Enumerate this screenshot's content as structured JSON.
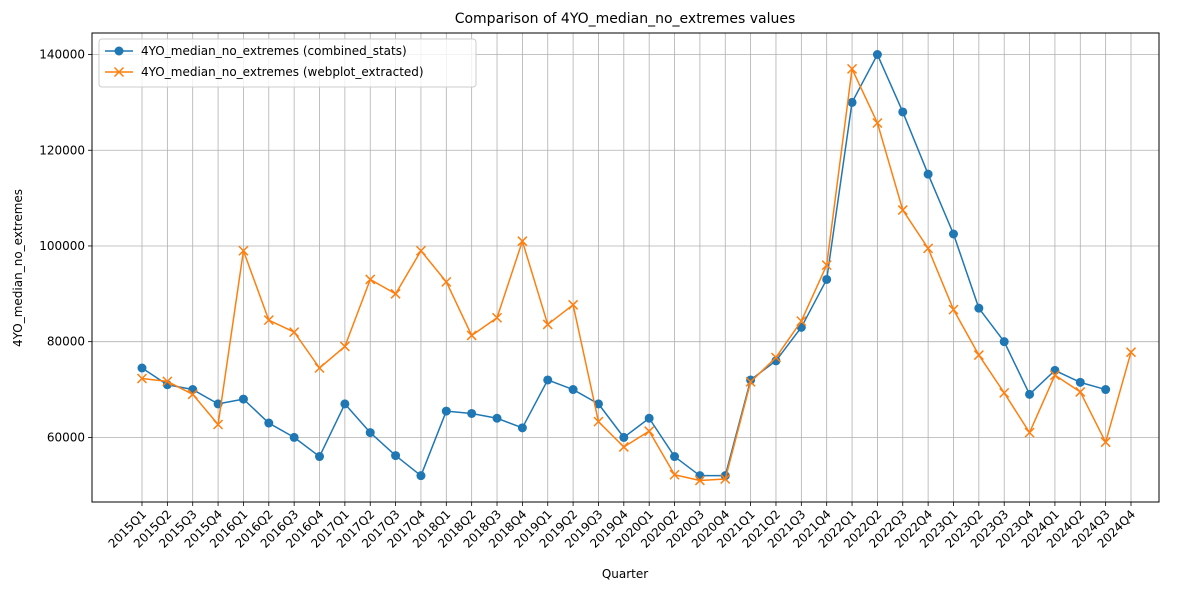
{
  "chart_data": {
    "type": "line",
    "title": "Comparison of 4YO_median_no_extremes values",
    "xlabel": "Quarter",
    "ylabel": "4YO_median_no_extremes",
    "ylim": [
      46500,
      144500
    ],
    "yticks": [
      60000,
      80000,
      100000,
      120000,
      140000
    ],
    "ytick_labels": [
      "60000",
      "80000",
      "100000",
      "120000",
      "140000"
    ],
    "grid": true,
    "legend_position": "upper-left",
    "categories": [
      "2015Q1",
      "2015Q2",
      "2015Q3",
      "2015Q4",
      "2016Q1",
      "2016Q2",
      "2016Q3",
      "2016Q4",
      "2017Q1",
      "2017Q2",
      "2017Q3",
      "2017Q4",
      "2018Q1",
      "2018Q2",
      "2018Q3",
      "2018Q4",
      "2019Q1",
      "2019Q2",
      "2019Q3",
      "2019Q4",
      "2020Q1",
      "2020Q2",
      "2020Q3",
      "2020Q4",
      "2021Q1",
      "2021Q2",
      "2021Q3",
      "2021Q4",
      "2022Q1",
      "2022Q2",
      "2022Q3",
      "2022Q4",
      "2023Q1",
      "2023Q2",
      "2023Q3",
      "2023Q4",
      "2024Q1",
      "2024Q2",
      "2024Q3",
      "2024Q4"
    ],
    "series": [
      {
        "name": "4YO_median_no_extremes (combined_stats)",
        "color": "#1f77b4",
        "marker": "circle",
        "values": [
          74500,
          71000,
          70000,
          67000,
          68000,
          63000,
          60000,
          56000,
          67000,
          61000,
          56200,
          52000,
          65500,
          65000,
          64000,
          62000,
          72000,
          70000,
          67000,
          60000,
          64000,
          56000,
          52000,
          52000,
          72000,
          76000,
          83000,
          93000,
          130000,
          140000,
          128000,
          115000,
          102500,
          87000,
          80000,
          69000,
          74000,
          71500,
          70000,
          null
        ]
      },
      {
        "name": "4YO_median_no_extremes (webplot_extracted)",
        "color": "#ff7f0e",
        "marker": "x",
        "values": [
          72300,
          71700,
          69000,
          62700,
          99000,
          84500,
          82000,
          74500,
          79000,
          93000,
          90000,
          99000,
          92500,
          81300,
          85000,
          101000,
          83600,
          87700,
          63300,
          58000,
          61300,
          52200,
          51000,
          51300,
          71600,
          76700,
          84300,
          96000,
          137000,
          125700,
          107500,
          99500,
          86700,
          77200,
          69300,
          61000,
          73000,
          69500,
          59000,
          77800
        ]
      }
    ]
  }
}
